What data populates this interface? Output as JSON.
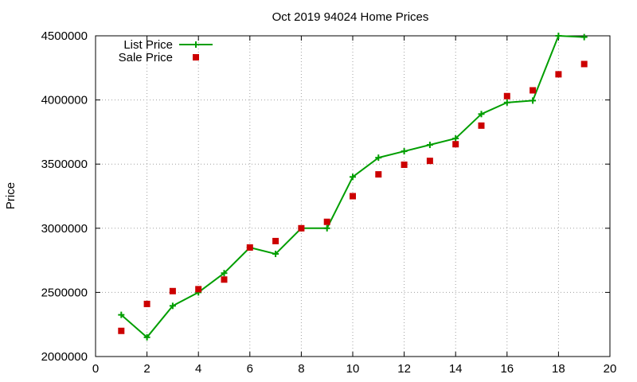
{
  "chart_data": {
    "type": "line",
    "title": "Oct 2019 94024 Home Prices",
    "xlabel": "",
    "ylabel": "Price",
    "xlim": [
      0,
      20
    ],
    "ylim": [
      2000000,
      4500000
    ],
    "x_ticks": [
      0,
      2,
      4,
      6,
      8,
      10,
      12,
      14,
      16,
      18,
      20
    ],
    "y_ticks": [
      2000000,
      2500000,
      3000000,
      3500000,
      4000000,
      4500000
    ],
    "grid": true,
    "legend_position": "top-left",
    "series": [
      {
        "name": "List Price",
        "style": "line+cross",
        "color": "#009e00",
        "x": [
          1,
          2,
          3,
          4,
          5,
          6,
          7,
          8,
          9,
          10,
          11,
          12,
          13,
          14,
          15,
          16,
          17,
          18,
          19
        ],
        "values": [
          2325000,
          2150000,
          2395000,
          2500000,
          2650000,
          2850000,
          2800000,
          3000000,
          3000000,
          3400000,
          3550000,
          3600000,
          3650000,
          3700000,
          3890000,
          3980000,
          3995000,
          4500000,
          4490000
        ]
      },
      {
        "name": "Sale Price",
        "style": "square",
        "color": "#cc0000",
        "x": [
          1,
          2,
          3,
          4,
          5,
          6,
          7,
          8,
          9,
          10,
          11,
          12,
          13,
          14,
          15,
          16,
          17,
          18,
          19
        ],
        "values": [
          2200000,
          2410000,
          2510000,
          2525000,
          2600000,
          2850000,
          2900000,
          3000000,
          3050000,
          3250000,
          3420000,
          3495000,
          3525000,
          3655000,
          3800000,
          4030000,
          4075000,
          4200000,
          4280000
        ]
      }
    ]
  }
}
